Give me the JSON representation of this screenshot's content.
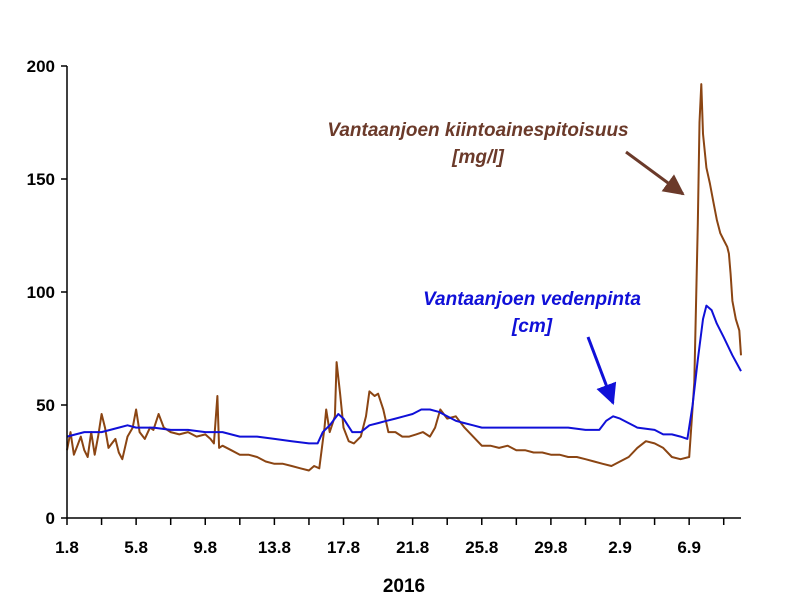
{
  "chart_data": {
    "type": "line",
    "title": "",
    "xlabel": "2016",
    "ylabel": "",
    "x_tick_labels": [
      "1.8",
      "5.8",
      "9.8",
      "13.8",
      "17.8",
      "21.8",
      "25.8",
      "29.8",
      "2.9",
      "6.9"
    ],
    "y_tick_labels": [
      "0",
      "50",
      "100",
      "150",
      "200"
    ],
    "xlim_days": [
      0,
      39
    ],
    "ylim": [
      0,
      200
    ],
    "grid": false,
    "legend": "annotations",
    "colors": {
      "sediment": "#8B4513",
      "water": "#1010D8",
      "sediment_label": "#6B3A2A"
    },
    "series": [
      {
        "key": "sediment",
        "values": [
          [
            0.0,
            30
          ],
          [
            0.2,
            38
          ],
          [
            0.4,
            28
          ],
          [
            0.6,
            32
          ],
          [
            0.8,
            36
          ],
          [
            1.0,
            30
          ],
          [
            1.2,
            27
          ],
          [
            1.4,
            38
          ],
          [
            1.6,
            28
          ],
          [
            1.8,
            36
          ],
          [
            2.0,
            46
          ],
          [
            2.2,
            40
          ],
          [
            2.4,
            31
          ],
          [
            2.6,
            33
          ],
          [
            2.8,
            35
          ],
          [
            3.0,
            29
          ],
          [
            3.2,
            26
          ],
          [
            3.5,
            36
          ],
          [
            3.8,
            40
          ],
          [
            4.0,
            48
          ],
          [
            4.2,
            38
          ],
          [
            4.5,
            35
          ],
          [
            4.8,
            40
          ],
          [
            5.0,
            39
          ],
          [
            5.3,
            46
          ],
          [
            5.6,
            40
          ],
          [
            6.0,
            38
          ],
          [
            6.5,
            37
          ],
          [
            7.0,
            38
          ],
          [
            7.5,
            36
          ],
          [
            8.0,
            37
          ],
          [
            8.3,
            35
          ],
          [
            8.5,
            33
          ],
          [
            8.7,
            54
          ],
          [
            8.8,
            31
          ],
          [
            9.0,
            32
          ],
          [
            9.5,
            30
          ],
          [
            10.0,
            28
          ],
          [
            10.5,
            28
          ],
          [
            11.0,
            27
          ],
          [
            11.5,
            25
          ],
          [
            12.0,
            24
          ],
          [
            12.5,
            24
          ],
          [
            13.0,
            23
          ],
          [
            13.5,
            22
          ],
          [
            14.0,
            21
          ],
          [
            14.3,
            23
          ],
          [
            14.6,
            22
          ],
          [
            14.9,
            40
          ],
          [
            15.0,
            48
          ],
          [
            15.2,
            38
          ],
          [
            15.5,
            45
          ],
          [
            15.6,
            69
          ],
          [
            15.8,
            55
          ],
          [
            16.0,
            40
          ],
          [
            16.3,
            34
          ],
          [
            16.6,
            33
          ],
          [
            17.0,
            36
          ],
          [
            17.3,
            45
          ],
          [
            17.5,
            56
          ],
          [
            17.8,
            54
          ],
          [
            18.0,
            55
          ],
          [
            18.3,
            48
          ],
          [
            18.6,
            38
          ],
          [
            19.0,
            38
          ],
          [
            19.4,
            36
          ],
          [
            19.8,
            36
          ],
          [
            20.2,
            37
          ],
          [
            20.6,
            38
          ],
          [
            21.0,
            36
          ],
          [
            21.3,
            40
          ],
          [
            21.6,
            48
          ],
          [
            22.0,
            44
          ],
          [
            22.5,
            45
          ],
          [
            23.0,
            40
          ],
          [
            23.5,
            36
          ],
          [
            24.0,
            32
          ],
          [
            24.5,
            32
          ],
          [
            25.0,
            31
          ],
          [
            25.5,
            32
          ],
          [
            26.0,
            30
          ],
          [
            26.5,
            30
          ],
          [
            27.0,
            29
          ],
          [
            27.5,
            29
          ],
          [
            28.0,
            28
          ],
          [
            28.5,
            28
          ],
          [
            29.0,
            27
          ],
          [
            29.5,
            27
          ],
          [
            30.0,
            26
          ],
          [
            30.5,
            25
          ],
          [
            31.0,
            24
          ],
          [
            31.5,
            23
          ],
          [
            32.0,
            25
          ],
          [
            32.5,
            27
          ],
          [
            33.0,
            31
          ],
          [
            33.5,
            34
          ],
          [
            34.0,
            33
          ],
          [
            34.5,
            31
          ],
          [
            35.0,
            27
          ],
          [
            35.5,
            26
          ],
          [
            36.0,
            27
          ],
          [
            36.3,
            60
          ],
          [
            36.5,
            130
          ],
          [
            36.6,
            175
          ],
          [
            36.7,
            192
          ],
          [
            36.8,
            170
          ],
          [
            37.0,
            155
          ],
          [
            37.2,
            148
          ],
          [
            37.4,
            140
          ],
          [
            37.6,
            132
          ],
          [
            37.8,
            126
          ],
          [
            38.0,
            123
          ],
          [
            38.2,
            120
          ],
          [
            38.3,
            117
          ],
          [
            38.4,
            108
          ],
          [
            38.5,
            96
          ],
          [
            38.7,
            88
          ],
          [
            38.9,
            83
          ],
          [
            39.0,
            72
          ]
        ]
      },
      {
        "key": "water",
        "values": [
          [
            0.0,
            36
          ],
          [
            1.0,
            38
          ],
          [
            2.0,
            38
          ],
          [
            3.0,
            40
          ],
          [
            3.5,
            41
          ],
          [
            4.0,
            40
          ],
          [
            5.0,
            40
          ],
          [
            6.0,
            39
          ],
          [
            7.0,
            39
          ],
          [
            8.0,
            38
          ],
          [
            9.0,
            38
          ],
          [
            10.0,
            36
          ],
          [
            11.0,
            36
          ],
          [
            12.0,
            35
          ],
          [
            13.0,
            34
          ],
          [
            14.0,
            33
          ],
          [
            14.5,
            33
          ],
          [
            14.8,
            38
          ],
          [
            15.2,
            41
          ],
          [
            15.7,
            46
          ],
          [
            16.0,
            44
          ],
          [
            16.5,
            38
          ],
          [
            17.0,
            38
          ],
          [
            17.5,
            41
          ],
          [
            18.0,
            42
          ],
          [
            18.5,
            43
          ],
          [
            19.0,
            44
          ],
          [
            19.5,
            45
          ],
          [
            20.0,
            46
          ],
          [
            20.5,
            48
          ],
          [
            21.0,
            48
          ],
          [
            21.5,
            47
          ],
          [
            22.0,
            45
          ],
          [
            22.5,
            43
          ],
          [
            23.0,
            42
          ],
          [
            23.5,
            41
          ],
          [
            24.0,
            40
          ],
          [
            25.0,
            40
          ],
          [
            26.0,
            40
          ],
          [
            27.0,
            40
          ],
          [
            28.0,
            40
          ],
          [
            29.0,
            40
          ],
          [
            30.0,
            39
          ],
          [
            30.8,
            39
          ],
          [
            31.2,
            43
          ],
          [
            31.6,
            45
          ],
          [
            32.0,
            44
          ],
          [
            32.5,
            42
          ],
          [
            33.0,
            40
          ],
          [
            34.0,
            39
          ],
          [
            34.5,
            37
          ],
          [
            35.0,
            37
          ],
          [
            35.5,
            36
          ],
          [
            35.9,
            35
          ],
          [
            36.2,
            50
          ],
          [
            36.5,
            70
          ],
          [
            36.8,
            88
          ],
          [
            37.0,
            94
          ],
          [
            37.3,
            92
          ],
          [
            37.6,
            86
          ],
          [
            38.0,
            80
          ],
          [
            38.5,
            72
          ],
          [
            39.0,
            65
          ]
        ]
      }
    ],
    "annotations": {
      "sediment_line1": "Vantaanjoen kiintoainespitoisuus",
      "sediment_line2": "[mg/l]",
      "water_line1": "Vantaanjoen vedenpinta",
      "water_line2": "[cm]"
    }
  }
}
